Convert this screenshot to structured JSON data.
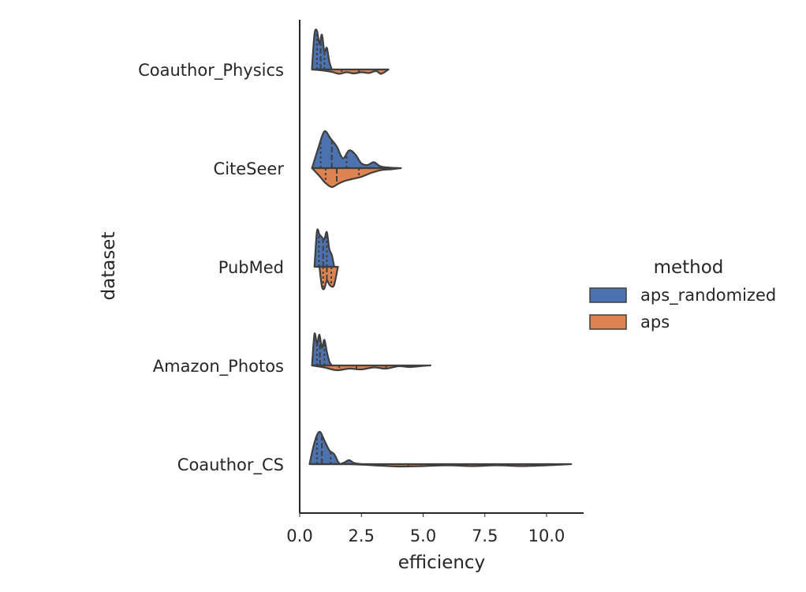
{
  "chart_data": {
    "type": "violin",
    "orientation": "horizontal",
    "split": true,
    "inner": "quartile",
    "xlabel": "efficiency",
    "ylabel": "dataset",
    "xlim": [
      0,
      11.5
    ],
    "x_ticks": [
      0,
      2.5,
      5,
      7.5,
      10
    ],
    "x_tick_labels": [
      "0.0",
      "2.5",
      "5.0",
      "7.5",
      "10.0"
    ],
    "grid": false,
    "legend": {
      "title": "method",
      "placement": "right"
    },
    "categories": [
      "Coauthor_Physics",
      "CiteSeer",
      "PubMed",
      "Amazon_Photos",
      "Coauthor_CS"
    ],
    "series": [
      {
        "name": "aps_randomized",
        "color": "#4c72b0",
        "side": "upper",
        "violins": [
          {
            "category": "Coauthor_Physics",
            "range": [
              0.5,
              1.3
            ],
            "quartiles": [
              0.7,
              0.85,
              1.0
            ],
            "profile": [
              [
                0.5,
                0.05
              ],
              [
                0.6,
                0.9
              ],
              [
                0.7,
                0.98
              ],
              [
                0.8,
                0.65
              ],
              [
                0.9,
                0.88
              ],
              [
                1.0,
                0.45
              ],
              [
                1.1,
                0.55
              ],
              [
                1.2,
                0.2
              ],
              [
                1.3,
                0.0
              ]
            ]
          },
          {
            "category": "CiteSeer",
            "range": [
              0.5,
              4.0
            ],
            "quartiles": [
              0.85,
              1.3,
              1.9
            ],
            "profile": [
              [
                0.5,
                0.0
              ],
              [
                0.75,
                0.5
              ],
              [
                1.0,
                0.93
              ],
              [
                1.25,
                0.75
              ],
              [
                1.5,
                0.55
              ],
              [
                1.75,
                0.25
              ],
              [
                2.0,
                0.45
              ],
              [
                2.25,
                0.35
              ],
              [
                2.5,
                0.12
              ],
              [
                2.75,
                0.08
              ],
              [
                3.0,
                0.15
              ],
              [
                3.25,
                0.05
              ],
              [
                3.5,
                0.02
              ],
              [
                4.0,
                0.0
              ]
            ]
          },
          {
            "category": "PubMed",
            "range": [
              0.6,
              1.4
            ],
            "quartiles": [
              0.78,
              0.95,
              1.1
            ],
            "profile": [
              [
                0.6,
                0.0
              ],
              [
                0.7,
                0.9
              ],
              [
                0.8,
                0.82
              ],
              [
                0.9,
                0.75
              ],
              [
                1.0,
                0.7
              ],
              [
                1.1,
                0.88
              ],
              [
                1.2,
                0.45
              ],
              [
                1.3,
                0.3
              ],
              [
                1.4,
                0.0
              ]
            ]
          },
          {
            "category": "Amazon_Photos",
            "range": [
              0.5,
              1.3
            ],
            "quartiles": [
              0.7,
              0.82,
              1.0
            ],
            "profile": [
              [
                0.5,
                0.0
              ],
              [
                0.6,
                0.8
              ],
              [
                0.7,
                0.55
              ],
              [
                0.8,
                0.78
              ],
              [
                0.9,
                0.45
              ],
              [
                1.0,
                0.65
              ],
              [
                1.1,
                0.35
              ],
              [
                1.2,
                0.1
              ],
              [
                1.3,
                0.0
              ]
            ]
          },
          {
            "category": "Coauthor_CS",
            "range": [
              0.4,
              2.5
            ],
            "quartiles": [
              0.7,
              0.9,
              1.25
            ],
            "profile": [
              [
                0.4,
                0.0
              ],
              [
                0.6,
                0.55
              ],
              [
                0.8,
                0.82
              ],
              [
                1.0,
                0.6
              ],
              [
                1.2,
                0.35
              ],
              [
                1.4,
                0.25
              ],
              [
                1.6,
                0.02
              ],
              [
                1.8,
                0.04
              ],
              [
                2.0,
                0.1
              ],
              [
                2.2,
                0.03
              ],
              [
                2.5,
                0.0
              ]
            ]
          }
        ]
      },
      {
        "name": "aps",
        "color": "#dd8452",
        "side": "lower",
        "violins": [
          {
            "category": "Coauthor_Physics",
            "range": [
              0.5,
              3.6
            ],
            "quartiles": [
              1.7,
              2.4,
              3.1
            ],
            "profile": [
              [
                0.5,
                0.0
              ],
              [
                1.0,
                0.03
              ],
              [
                1.3,
                0.06
              ],
              [
                1.6,
                0.11
              ],
              [
                1.9,
                0.07
              ],
              [
                2.2,
                0.1
              ],
              [
                2.5,
                0.07
              ],
              [
                2.8,
                0.09
              ],
              [
                3.1,
                0.04
              ],
              [
                3.3,
                0.11
              ],
              [
                3.6,
                0.0
              ]
            ]
          },
          {
            "category": "CiteSeer",
            "range": [
              0.5,
              4.1
            ],
            "quartiles": [
              1.05,
              1.5,
              2.4
            ],
            "profile": [
              [
                0.5,
                0.0
              ],
              [
                0.8,
                0.2
              ],
              [
                1.05,
                0.38
              ],
              [
                1.3,
                0.48
              ],
              [
                1.55,
                0.4
              ],
              [
                1.8,
                0.33
              ],
              [
                2.1,
                0.28
              ],
              [
                2.5,
                0.22
              ],
              [
                2.9,
                0.12
              ],
              [
                3.3,
                0.05
              ],
              [
                3.7,
                0.03
              ],
              [
                4.1,
                0.0
              ]
            ]
          },
          {
            "category": "PubMed",
            "range": [
              0.8,
              1.55
            ],
            "quartiles": [
              0.95,
              1.1,
              1.28
            ],
            "profile": [
              [
                0.8,
                0.0
              ],
              [
                0.9,
                0.5
              ],
              [
                1.0,
                0.55
              ],
              [
                1.1,
                0.35
              ],
              [
                1.2,
                0.45
              ],
              [
                1.3,
                0.5
              ],
              [
                1.4,
                0.45
              ],
              [
                1.55,
                0.0
              ]
            ]
          },
          {
            "category": "Amazon_Photos",
            "range": [
              0.5,
              5.3
            ],
            "quartiles": [
              1.6,
              2.3,
              3.5
            ],
            "profile": [
              [
                0.5,
                0.0
              ],
              [
                1.0,
                0.05
              ],
              [
                1.5,
                0.12
              ],
              [
                2.0,
                0.08
              ],
              [
                2.5,
                0.1
              ],
              [
                3.0,
                0.05
              ],
              [
                3.5,
                0.08
              ],
              [
                4.0,
                0.02
              ],
              [
                4.5,
                0.04
              ],
              [
                5.0,
                0.01
              ],
              [
                5.3,
                0.0
              ]
            ]
          },
          {
            "category": "Coauthor_CS",
            "range": [
              0.5,
              11.0
            ],
            "quartiles": [
              4.4,
              6.8,
              9.2
            ],
            "profile": [
              [
                0.5,
                0.0
              ],
              [
                2.0,
                0.0
              ],
              [
                3.0,
                0.03
              ],
              [
                4.0,
                0.06
              ],
              [
                5.0,
                0.05
              ],
              [
                6.0,
                0.03
              ],
              [
                7.0,
                0.05
              ],
              [
                8.0,
                0.03
              ],
              [
                9.0,
                0.05
              ],
              [
                10.0,
                0.03
              ],
              [
                11.0,
                0.0
              ]
            ]
          }
        ]
      }
    ]
  }
}
